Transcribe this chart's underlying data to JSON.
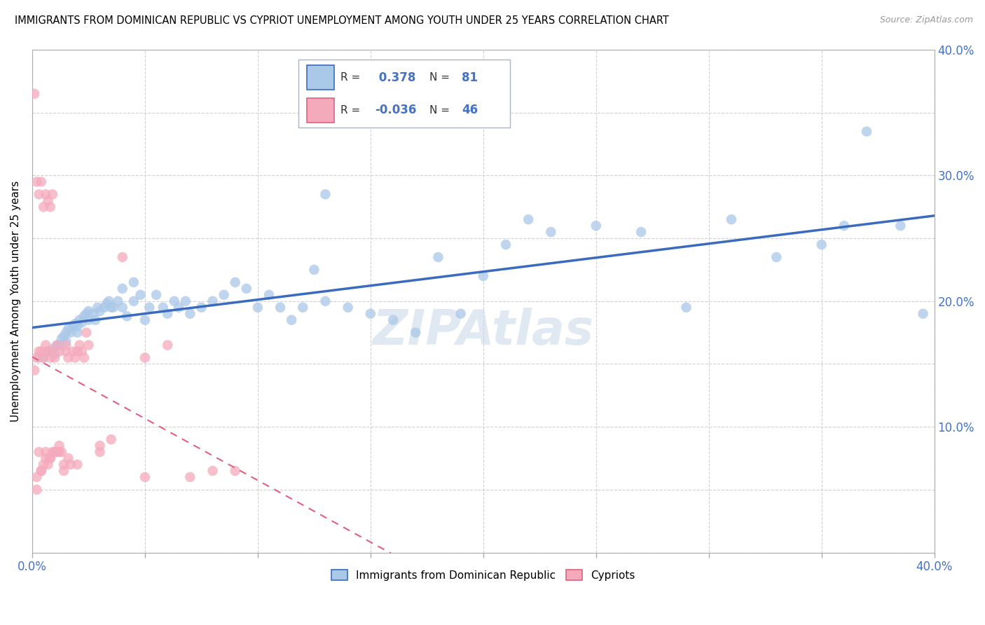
{
  "title": "IMMIGRANTS FROM DOMINICAN REPUBLIC VS CYPRIOT UNEMPLOYMENT AMONG YOUTH UNDER 25 YEARS CORRELATION CHART",
  "source": "Source: ZipAtlas.com",
  "ylabel": "Unemployment Among Youth under 25 years",
  "xlim": [
    0.0,
    0.4
  ],
  "ylim": [
    0.0,
    0.4
  ],
  "x_ticks": [
    0.0,
    0.05,
    0.1,
    0.15,
    0.2,
    0.25,
    0.3,
    0.35,
    0.4
  ],
  "y_ticks": [
    0.0,
    0.05,
    0.1,
    0.15,
    0.2,
    0.25,
    0.3,
    0.35,
    0.4
  ],
  "blue_R": 0.378,
  "blue_N": 81,
  "pink_R": -0.036,
  "pink_N": 46,
  "blue_color": "#aac8e8",
  "pink_color": "#f5aabc",
  "blue_line_color": "#3a6bbf",
  "pink_line_color": "#e06080",
  "legend_blue_label": "Immigrants from Dominican Republic",
  "legend_pink_label": "Cypriots",
  "blue_scatter_x": [
    0.003,
    0.005,
    0.007,
    0.009,
    0.01,
    0.011,
    0.012,
    0.013,
    0.014,
    0.015,
    0.015,
    0.016,
    0.017,
    0.018,
    0.019,
    0.02,
    0.02,
    0.021,
    0.022,
    0.023,
    0.024,
    0.025,
    0.025,
    0.027,
    0.028,
    0.029,
    0.03,
    0.032,
    0.033,
    0.034,
    0.035,
    0.036,
    0.038,
    0.04,
    0.04,
    0.042,
    0.045,
    0.045,
    0.048,
    0.05,
    0.052,
    0.055,
    0.058,
    0.06,
    0.063,
    0.065,
    0.068,
    0.07,
    0.075,
    0.08,
    0.085,
    0.09,
    0.095,
    0.1,
    0.105,
    0.11,
    0.115,
    0.12,
    0.125,
    0.13,
    0.14,
    0.15,
    0.16,
    0.17,
    0.18,
    0.19,
    0.2,
    0.21,
    0.22,
    0.23,
    0.25,
    0.27,
    0.29,
    0.31,
    0.33,
    0.35,
    0.36,
    0.37,
    0.385,
    0.395,
    0.13
  ],
  "blue_scatter_y": [
    0.155,
    0.155,
    0.16,
    0.162,
    0.158,
    0.165,
    0.165,
    0.17,
    0.172,
    0.168,
    0.175,
    0.178,
    0.175,
    0.18,
    0.182,
    0.18,
    0.175,
    0.185,
    0.183,
    0.188,
    0.19,
    0.185,
    0.192,
    0.19,
    0.185,
    0.195,
    0.192,
    0.195,
    0.198,
    0.2,
    0.195,
    0.195,
    0.2,
    0.195,
    0.21,
    0.188,
    0.2,
    0.215,
    0.205,
    0.185,
    0.195,
    0.205,
    0.195,
    0.19,
    0.2,
    0.195,
    0.2,
    0.19,
    0.195,
    0.2,
    0.205,
    0.215,
    0.21,
    0.195,
    0.205,
    0.195,
    0.185,
    0.195,
    0.225,
    0.2,
    0.195,
    0.19,
    0.185,
    0.175,
    0.235,
    0.19,
    0.22,
    0.245,
    0.265,
    0.255,
    0.26,
    0.255,
    0.195,
    0.265,
    0.235,
    0.245,
    0.26,
    0.335,
    0.26,
    0.19,
    0.285
  ],
  "pink_scatter_x": [
    0.001,
    0.002,
    0.002,
    0.003,
    0.003,
    0.004,
    0.004,
    0.005,
    0.005,
    0.006,
    0.006,
    0.007,
    0.007,
    0.008,
    0.008,
    0.009,
    0.009,
    0.01,
    0.01,
    0.011,
    0.011,
    0.012,
    0.012,
    0.013,
    0.014,
    0.015,
    0.015,
    0.016,
    0.017,
    0.018,
    0.019,
    0.02,
    0.021,
    0.022,
    0.023,
    0.024,
    0.025,
    0.03,
    0.035,
    0.04,
    0.05,
    0.06,
    0.07,
    0.08,
    0.05,
    0.09
  ],
  "pink_scatter_y": [
    0.145,
    0.06,
    0.155,
    0.08,
    0.16,
    0.065,
    0.16,
    0.07,
    0.155,
    0.075,
    0.165,
    0.07,
    0.16,
    0.075,
    0.155,
    0.08,
    0.16,
    0.08,
    0.155,
    0.08,
    0.165,
    0.08,
    0.16,
    0.08,
    0.065,
    0.16,
    0.165,
    0.155,
    0.07,
    0.16,
    0.155,
    0.16,
    0.165,
    0.16,
    0.155,
    0.175,
    0.165,
    0.08,
    0.09,
    0.235,
    0.155,
    0.165,
    0.06,
    0.065,
    0.06,
    0.065
  ],
  "pink_outliers_x": [
    0.001,
    0.002,
    0.003,
    0.004,
    0.005,
    0.006,
    0.007,
    0.008,
    0.009
  ],
  "pink_outliers_y": [
    0.365,
    0.295,
    0.285,
    0.295,
    0.275,
    0.285,
    0.28,
    0.275,
    0.285
  ],
  "pink_low_x": [
    0.002,
    0.004,
    0.006,
    0.008,
    0.01,
    0.012,
    0.014,
    0.016,
    0.02,
    0.03
  ],
  "pink_low_y": [
    0.05,
    0.065,
    0.08,
    0.075,
    0.08,
    0.085,
    0.07,
    0.075,
    0.07,
    0.085
  ]
}
